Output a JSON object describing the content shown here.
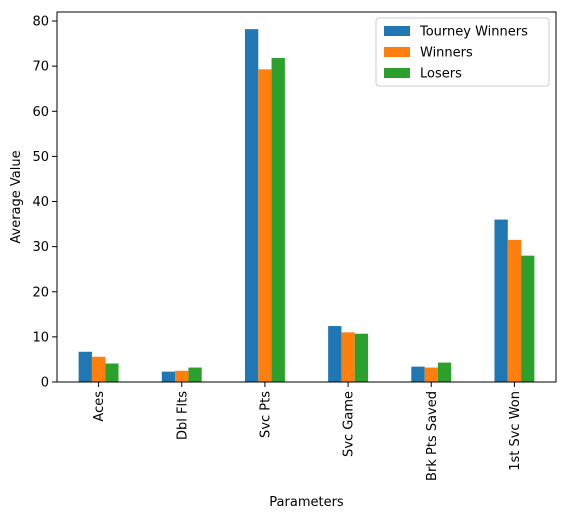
{
  "chart_data": {
    "type": "bar",
    "title": "",
    "xlabel": "Parameters",
    "ylabel": "Average Value",
    "categories": [
      "Aces",
      "Dbl Flts",
      "Svc Pts",
      "Svc Game",
      "Brk Pts Saved",
      "1st Svc Won"
    ],
    "ylim": [
      0,
      82
    ],
    "yticks": [
      0,
      10,
      20,
      30,
      40,
      50,
      60,
      70,
      80
    ],
    "grid": false,
    "legend_position": "top-right",
    "series": [
      {
        "name": "Tourney Winners",
        "color": "#1f77b4",
        "values": [
          6.7,
          2.3,
          78.2,
          12.4,
          3.4,
          36.0
        ]
      },
      {
        "name": "Winners",
        "color": "#ff7f0e",
        "values": [
          5.6,
          2.5,
          69.3,
          11.0,
          3.2,
          31.5
        ]
      },
      {
        "name": "Losers",
        "color": "#2ca02c",
        "values": [
          4.1,
          3.2,
          71.8,
          10.7,
          4.3,
          28.0
        ]
      }
    ]
  }
}
